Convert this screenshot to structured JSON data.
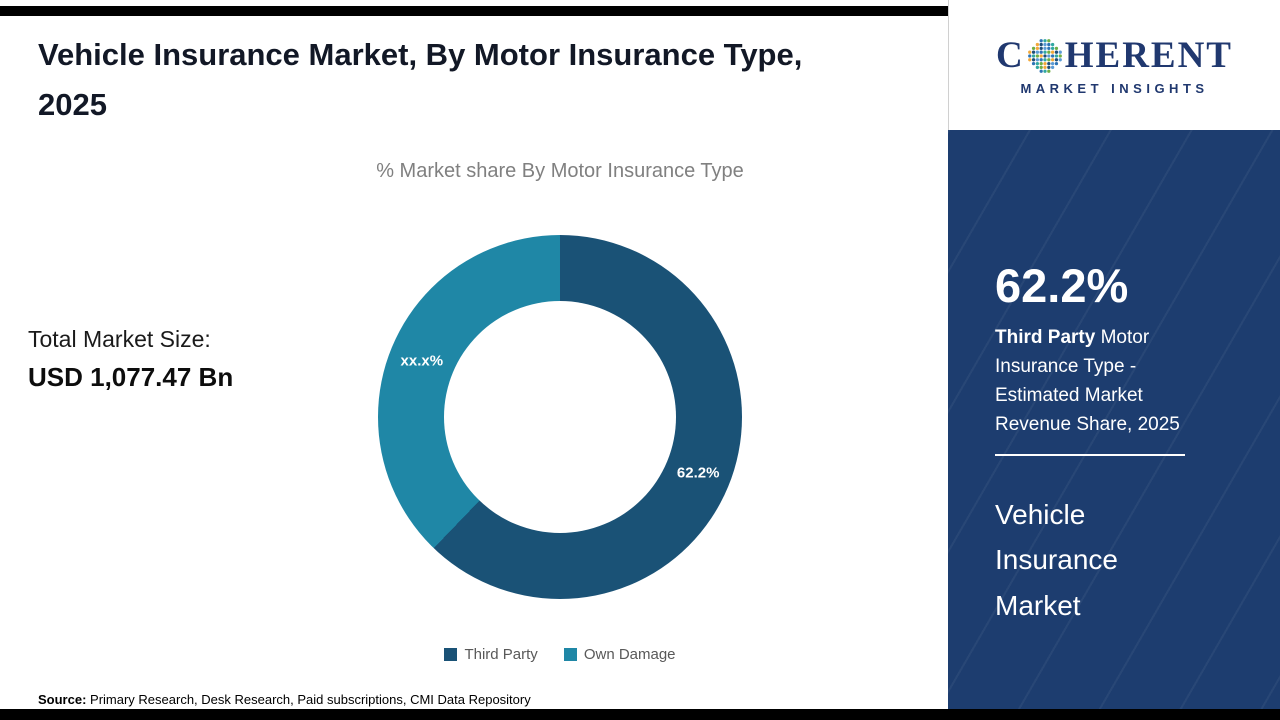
{
  "page": {
    "title": "Vehicle Insurance Market, By Motor Insurance Type, 2025",
    "source_label": "Source:",
    "source_text": " Primary Research, Desk Research, Paid subscriptions, CMI Data Repository"
  },
  "left_panel": {
    "total_market_label": "Total Market Size:",
    "total_market_value": "USD 1,077.47 Bn"
  },
  "chart_data": {
    "type": "pie",
    "subtype": "donut",
    "title": "% Market share By Motor Insurance Type",
    "categories": [
      "Third Party",
      "Own Damage"
    ],
    "values": [
      62.2,
      37.8
    ],
    "slice_labels": [
      "62.2%",
      "xx.x%"
    ],
    "colors": [
      "#1a5276",
      "#1f87a6"
    ],
    "start_angle_deg": 0,
    "legend_position": "bottom"
  },
  "logo": {
    "name": "Coherent Market Insights",
    "word_prefix": "C",
    "word_suffix": "HERENT",
    "subtitle": "MARKET INSIGHTS",
    "brand_color": "#20386f",
    "globe_colors": [
      "#2e74b5",
      "#31a8a0",
      "#6fae46",
      "#f2a93b",
      "#1f4e79",
      "#5b9bd5"
    ]
  },
  "sidebar": {
    "stat_value": "62.2%",
    "description_bold": "Third Party",
    "description_rest": " Motor Insurance Type - Estimated Market Revenue Share, 2025",
    "market_name": "Vehicle Insurance Market",
    "background_color": "#1d3d6f"
  }
}
